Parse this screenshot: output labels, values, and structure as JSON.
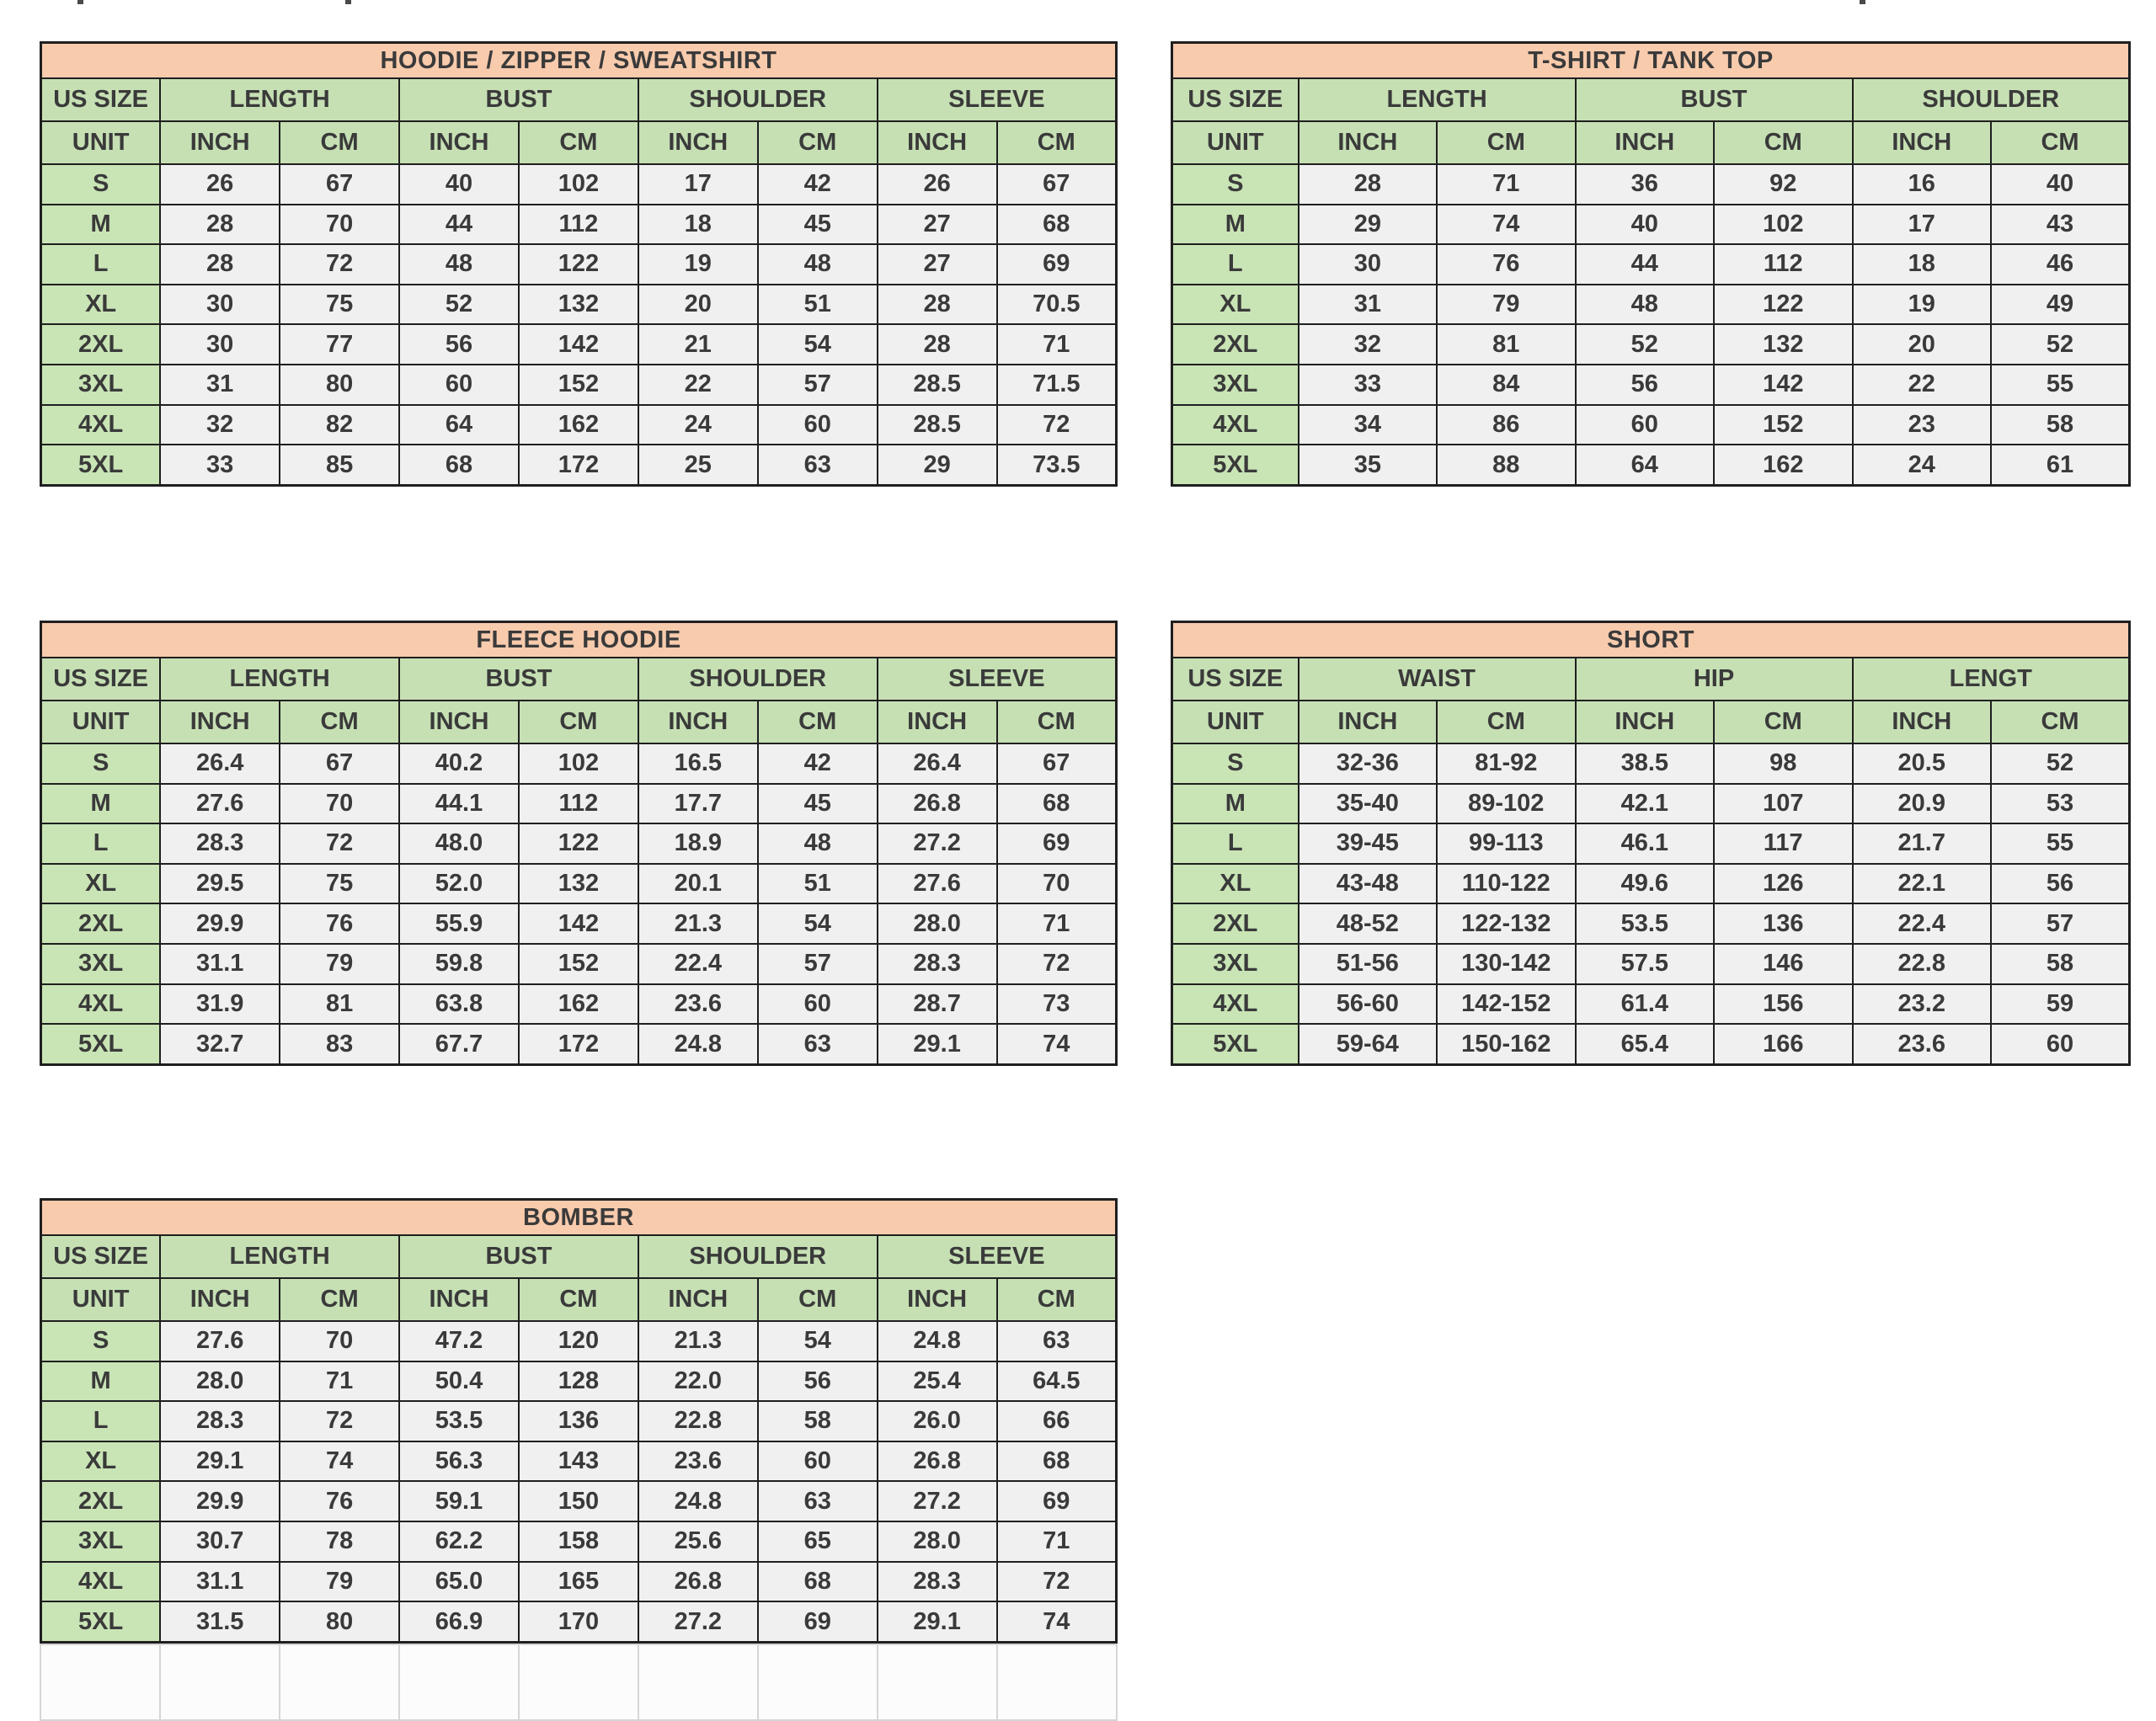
{
  "colors": {
    "title_bg": "#F8CBAD",
    "header_bg": "#C6E0B4",
    "size_col_bg": "#C9E4B5",
    "cell_bg": "#F0F0F0",
    "border": "#1F1F1F",
    "text": "#3A3A3A",
    "page_bg": "#FFFFFF"
  },
  "tables": [
    {
      "id": "hoodie-zipper-sweatshirt",
      "title": "HOODIE / ZIPPER / SWEATSHIRT",
      "size_header": "US SIZE",
      "unit_header": "UNIT",
      "groups": [
        "LENGTH",
        "BUST",
        "SHOULDER",
        "SLEEVE"
      ],
      "unit_cols": [
        "INCH",
        "CM",
        "INCH",
        "CM",
        "INCH",
        "CM",
        "INCH",
        "CM"
      ],
      "rows": [
        [
          "S",
          "26",
          "67",
          "40",
          "102",
          "17",
          "42",
          "26",
          "67"
        ],
        [
          "M",
          "28",
          "70",
          "44",
          "112",
          "18",
          "45",
          "27",
          "68"
        ],
        [
          "L",
          "28",
          "72",
          "48",
          "122",
          "19",
          "48",
          "27",
          "69"
        ],
        [
          "XL",
          "30",
          "75",
          "52",
          "132",
          "20",
          "51",
          "28",
          "70.5"
        ],
        [
          "2XL",
          "30",
          "77",
          "56",
          "142",
          "21",
          "54",
          "28",
          "71"
        ],
        [
          "3XL",
          "31",
          "80",
          "60",
          "152",
          "22",
          "57",
          "28.5",
          "71.5"
        ],
        [
          "4XL",
          "32",
          "82",
          "64",
          "162",
          "24",
          "60",
          "28.5",
          "72"
        ],
        [
          "5XL",
          "33",
          "85",
          "68",
          "172",
          "25",
          "63",
          "29",
          "73.5"
        ]
      ]
    },
    {
      "id": "tshirt-tank-top",
      "title": "T-SHIRT / TANK TOP",
      "size_header": "US SIZE",
      "unit_header": "UNIT",
      "groups": [
        "LENGTH",
        "BUST",
        "SHOULDER"
      ],
      "unit_cols": [
        "INCH",
        "CM",
        "INCH",
        "CM",
        "INCH",
        "CM"
      ],
      "rows": [
        [
          "S",
          "28",
          "71",
          "36",
          "92",
          "16",
          "40"
        ],
        [
          "M",
          "29",
          "74",
          "40",
          "102",
          "17",
          "43"
        ],
        [
          "L",
          "30",
          "76",
          "44",
          "112",
          "18",
          "46"
        ],
        [
          "XL",
          "31",
          "79",
          "48",
          "122",
          "19",
          "49"
        ],
        [
          "2XL",
          "32",
          "81",
          "52",
          "132",
          "20",
          "52"
        ],
        [
          "3XL",
          "33",
          "84",
          "56",
          "142",
          "22",
          "55"
        ],
        [
          "4XL",
          "34",
          "86",
          "60",
          "152",
          "23",
          "58"
        ],
        [
          "5XL",
          "35",
          "88",
          "64",
          "162",
          "24",
          "61"
        ]
      ]
    },
    {
      "id": "fleece-hoodie",
      "title": "FLEECE HOODIE",
      "size_header": "US SIZE",
      "unit_header": "UNIT",
      "groups": [
        "LENGTH",
        "BUST",
        "SHOULDER",
        "SLEEVE"
      ],
      "unit_cols": [
        "INCH",
        "CM",
        "INCH",
        "CM",
        "INCH",
        "CM",
        "INCH",
        "CM"
      ],
      "rows": [
        [
          "S",
          "26.4",
          "67",
          "40.2",
          "102",
          "16.5",
          "42",
          "26.4",
          "67"
        ],
        [
          "M",
          "27.6",
          "70",
          "44.1",
          "112",
          "17.7",
          "45",
          "26.8",
          "68"
        ],
        [
          "L",
          "28.3",
          "72",
          "48.0",
          "122",
          "18.9",
          "48",
          "27.2",
          "69"
        ],
        [
          "XL",
          "29.5",
          "75",
          "52.0",
          "132",
          "20.1",
          "51",
          "27.6",
          "70"
        ],
        [
          "2XL",
          "29.9",
          "76",
          "55.9",
          "142",
          "21.3",
          "54",
          "28.0",
          "71"
        ],
        [
          "3XL",
          "31.1",
          "79",
          "59.8",
          "152",
          "22.4",
          "57",
          "28.3",
          "72"
        ],
        [
          "4XL",
          "31.9",
          "81",
          "63.8",
          "162",
          "23.6",
          "60",
          "28.7",
          "73"
        ],
        [
          "5XL",
          "32.7",
          "83",
          "67.7",
          "172",
          "24.8",
          "63",
          "29.1",
          "74"
        ]
      ]
    },
    {
      "id": "short",
      "title": "SHORT",
      "size_header": "US SIZE",
      "unit_header": "UNIT",
      "groups": [
        "WAIST",
        "HIP",
        "LENGT"
      ],
      "unit_cols": [
        "INCH",
        "CM",
        "INCH",
        "CM",
        "INCH",
        "CM"
      ],
      "rows": [
        [
          "S",
          "32-36",
          "81-92",
          "38.5",
          "98",
          "20.5",
          "52"
        ],
        [
          "M",
          "35-40",
          "89-102",
          "42.1",
          "107",
          "20.9",
          "53"
        ],
        [
          "L",
          "39-45",
          "99-113",
          "46.1",
          "117",
          "21.7",
          "55"
        ],
        [
          "XL",
          "43-48",
          "110-122",
          "49.6",
          "126",
          "22.1",
          "56"
        ],
        [
          "2XL",
          "48-52",
          "122-132",
          "53.5",
          "136",
          "22.4",
          "57"
        ],
        [
          "3XL",
          "51-56",
          "130-142",
          "57.5",
          "146",
          "22.8",
          "58"
        ],
        [
          "4XL",
          "56-60",
          "142-152",
          "61.4",
          "156",
          "23.2",
          "59"
        ],
        [
          "5XL",
          "59-64",
          "150-162",
          "65.4",
          "166",
          "23.6",
          "60"
        ]
      ]
    },
    {
      "id": "bomber",
      "title": "BOMBER",
      "size_header": "US SIZE",
      "unit_header": "UNIT",
      "groups": [
        "LENGTH",
        "BUST",
        "SHOULDER",
        "SLEEVE"
      ],
      "unit_cols": [
        "INCH",
        "CM",
        "INCH",
        "CM",
        "INCH",
        "CM",
        "INCH",
        "CM"
      ],
      "rows": [
        [
          "S",
          "27.6",
          "70",
          "47.2",
          "120",
          "21.3",
          "54",
          "24.8",
          "63"
        ],
        [
          "M",
          "28.0",
          "71",
          "50.4",
          "128",
          "22.0",
          "56",
          "25.4",
          "64.5"
        ],
        [
          "L",
          "28.3",
          "72",
          "53.5",
          "136",
          "22.8",
          "58",
          "26.0",
          "66"
        ],
        [
          "XL",
          "29.1",
          "74",
          "56.3",
          "143",
          "23.6",
          "60",
          "26.8",
          "68"
        ],
        [
          "2XL",
          "29.9",
          "76",
          "59.1",
          "150",
          "24.8",
          "63",
          "27.2",
          "69"
        ],
        [
          "3XL",
          "30.7",
          "78",
          "62.2",
          "158",
          "25.6",
          "65",
          "28.0",
          "71"
        ],
        [
          "4XL",
          "31.1",
          "79",
          "65.0",
          "165",
          "26.8",
          "68",
          "28.3",
          "72"
        ],
        [
          "5XL",
          "31.5",
          "80",
          "66.9",
          "170",
          "27.2",
          "69",
          "29.1",
          "74"
        ]
      ]
    }
  ]
}
